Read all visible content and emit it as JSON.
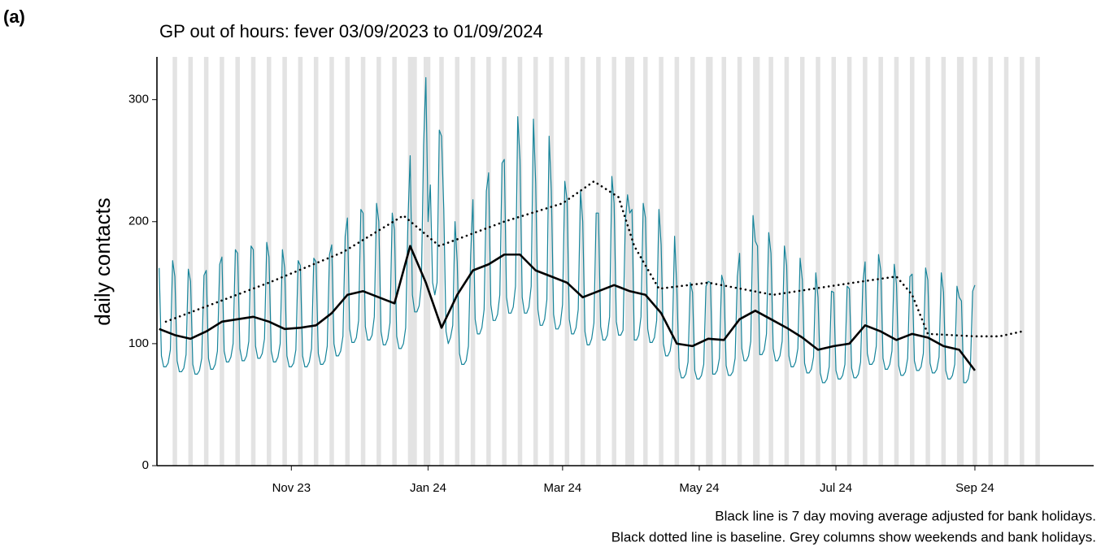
{
  "panel_label": "(a)",
  "chart_data": {
    "type": "line",
    "title": "GP out of hours: fever 03/09/2023 to 01/09/2024",
    "y_label": "daily contacts",
    "caption": [
      "Black line is 7 day moving average adjusted for bank holidays.",
      "Black dotted line is baseline. Grey columns show weekends and bank holidays."
    ],
    "xlim": [
      -1,
      417
    ],
    "xticks": [
      {
        "value": 59,
        "label": "Nov 23"
      },
      {
        "value": 120,
        "label": "Jan 24"
      },
      {
        "value": 180,
        "label": "Mar 24"
      },
      {
        "value": 241,
        "label": "May 24"
      },
      {
        "value": 302,
        "label": "Jul 24"
      },
      {
        "value": 364,
        "label": "Sep 24"
      }
    ],
    "ylim": [
      0,
      335
    ],
    "yticks": [
      0,
      100,
      200,
      300
    ],
    "shading_color": "#e3e3e3",
    "shaded": [
      [
        6,
        8
      ],
      [
        13,
        15
      ],
      [
        20,
        22
      ],
      [
        27,
        29
      ],
      [
        34,
        36
      ],
      [
        41,
        43
      ],
      [
        48,
        50
      ],
      [
        55,
        57
      ],
      [
        62,
        64
      ],
      [
        69,
        71
      ],
      [
        76,
        78
      ],
      [
        83,
        85
      ],
      [
        90,
        92
      ],
      [
        97,
        99
      ],
      [
        104,
        106
      ],
      [
        111,
        115
      ],
      [
        118,
        121
      ],
      [
        125,
        127
      ],
      [
        132,
        134
      ],
      [
        139,
        141
      ],
      [
        146,
        148
      ],
      [
        153,
        155
      ],
      [
        160,
        162
      ],
      [
        167,
        169
      ],
      [
        174,
        176
      ],
      [
        181,
        183
      ],
      [
        188,
        190
      ],
      [
        195,
        197
      ],
      [
        202,
        204
      ],
      [
        208,
        212
      ],
      [
        216,
        218
      ],
      [
        223,
        225
      ],
      [
        230,
        232
      ],
      [
        237,
        239
      ],
      [
        244,
        247
      ],
      [
        251,
        253
      ],
      [
        258,
        260
      ],
      [
        265,
        268
      ],
      [
        272,
        274
      ],
      [
        279,
        281
      ],
      [
        286,
        288
      ],
      [
        293,
        295
      ],
      [
        300,
        302
      ],
      [
        307,
        309
      ],
      [
        314,
        316
      ],
      [
        321,
        323
      ],
      [
        328,
        330
      ],
      [
        335,
        337
      ],
      [
        342,
        344
      ],
      [
        349,
        351
      ],
      [
        356,
        359
      ],
      [
        363,
        365
      ],
      [
        370,
        372
      ],
      [
        377,
        379
      ],
      [
        384,
        386
      ],
      [
        391,
        393
      ]
    ],
    "series": [
      {
        "color": "#16849a",
        "line_style": "solid",
        "x": [
          0,
          1,
          2,
          3,
          4,
          5,
          6,
          7,
          8,
          9,
          10,
          11,
          12,
          13,
          14,
          15,
          16,
          17,
          18,
          19,
          20,
          21,
          22,
          23,
          24,
          25,
          26,
          27,
          28,
          29,
          30,
          31,
          32,
          33,
          34,
          35,
          36,
          37,
          38,
          39,
          40,
          41,
          42,
          43,
          44,
          45,
          46,
          47,
          48,
          49,
          50,
          51,
          52,
          53,
          54,
          55,
          56,
          57,
          58,
          59,
          60,
          61,
          62,
          63,
          64,
          65,
          66,
          67,
          68,
          69,
          70,
          71,
          72,
          73,
          74,
          75,
          76,
          77,
          78,
          79,
          80,
          81,
          82,
          83,
          84,
          85,
          86,
          87,
          88,
          89,
          90,
          91,
          92,
          93,
          94,
          95,
          96,
          97,
          98,
          99,
          100,
          101,
          102,
          103,
          104,
          105,
          106,
          107,
          108,
          109,
          110,
          111,
          112,
          113,
          114,
          115,
          116,
          117,
          118,
          119,
          120,
          121,
          122,
          123,
          124,
          125,
          126,
          127,
          128,
          129,
          130,
          131,
          132,
          133,
          134,
          135,
          136,
          137,
          138,
          139,
          140,
          141,
          142,
          143,
          144,
          145,
          146,
          147,
          148,
          149,
          150,
          151,
          152,
          153,
          154,
          155,
          156,
          157,
          158,
          159,
          160,
          161,
          162,
          163,
          164,
          165,
          166,
          167,
          168,
          169,
          170,
          171,
          172,
          173,
          174,
          175,
          176,
          177,
          178,
          179,
          180,
          181,
          182,
          183,
          184,
          185,
          186,
          187,
          188,
          189,
          190,
          191,
          192,
          193,
          194,
          195,
          196,
          197,
          198,
          199,
          200,
          201,
          202,
          203,
          204,
          205,
          206,
          207,
          208,
          209,
          210,
          211,
          212,
          213,
          214,
          215,
          216,
          217,
          218,
          219,
          220,
          221,
          222,
          223,
          224,
          225,
          226,
          227,
          228,
          229,
          230,
          231,
          232,
          233,
          234,
          235,
          236,
          237,
          238,
          239,
          240,
          241,
          242,
          243,
          244,
          245,
          246,
          247,
          248,
          249,
          250,
          251,
          252,
          253,
          254,
          255,
          256,
          257,
          258,
          259,
          260,
          261,
          262,
          263,
          264,
          265,
          266,
          267,
          268,
          269,
          270,
          271,
          272,
          273,
          274,
          275,
          276,
          277,
          278,
          279,
          280,
          281,
          282,
          283,
          284,
          285,
          286,
          287,
          288,
          289,
          290,
          291,
          292,
          293,
          294,
          295,
          296,
          297,
          298,
          299,
          300,
          301,
          302,
          303,
          304,
          305,
          306,
          307,
          308,
          309,
          310,
          311,
          312,
          313,
          314,
          315,
          316,
          317,
          318,
          319,
          320,
          321,
          322,
          323,
          324,
          325,
          326,
          327,
          328,
          329,
          330,
          331,
          332,
          333,
          334,
          335,
          336,
          337,
          338,
          339,
          340,
          341,
          342,
          343,
          344,
          345,
          346,
          347,
          348,
          349,
          350,
          351,
          352,
          353,
          354,
          355,
          356,
          357,
          358,
          359,
          360,
          361,
          362,
          363,
          364
        ],
        "values": [
          162,
          90,
          81,
          81,
          84,
          95,
          168,
          155,
          86,
          77,
          77,
          80,
          91,
          161,
          151,
          83,
          75,
          75,
          78,
          88,
          156,
          160,
          88,
          79,
          79,
          83,
          94,
          165,
          171,
          94,
          85,
          85,
          89,
          100,
          177,
          174,
          96,
          86,
          86,
          90,
          102,
          180,
          177,
          98,
          88,
          88,
          92,
          104,
          183,
          171,
          94,
          85,
          85,
          89,
          100,
          177,
          162,
          90,
          81,
          81,
          84,
          95,
          168,
          164,
          90,
          81,
          81,
          85,
          96,
          170,
          167,
          92,
          83,
          83,
          86,
          98,
          173,
          181,
          100,
          90,
          90,
          94,
          106,
          188,
          203,
          112,
          101,
          101,
          105,
          119,
          210,
          207,
          114,
          103,
          103,
          107,
          122,
          215,
          200,
          110,
          99,
          99,
          104,
          117,
          207,
          193,
          106,
          96,
          96,
          100,
          113,
          200,
          254,
          140,
          126,
          126,
          131,
          149,
          263,
          318,
          200,
          230,
          150,
          140,
          150,
          275,
          270,
          210,
          110,
          100,
          105,
          115,
          200,
          167,
          92,
          83,
          83,
          86,
          98,
          173,
          218,
          120,
          108,
          108,
          113,
          128,
          225,
          240,
          132,
          119,
          119,
          124,
          140,
          248,
          251,
          138,
          125,
          125,
          130,
          147,
          286,
          251,
          138,
          125,
          125,
          130,
          147,
          284,
          232,
          128,
          115,
          115,
          120,
          136,
          270,
          225,
          124,
          112,
          112,
          116,
          132,
          233,
          218,
          120,
          108,
          108,
          113,
          128,
          225,
          200,
          110,
          99,
          99,
          104,
          117,
          207,
          207,
          114,
          103,
          103,
          107,
          122,
          237,
          215,
          118,
          107,
          107,
          111,
          200,
          222,
          207,
          210,
          103,
          103,
          107,
          122,
          215,
          203,
          112,
          101,
          101,
          105,
          119,
          210,
          181,
          100,
          90,
          90,
          94,
          106,
          188,
          145,
          80,
          72,
          72,
          75,
          85,
          150,
          142,
          78,
          71,
          71,
          74,
          83,
          147,
          151,
          150,
          75,
          75,
          78,
          88,
          156,
          149,
          82,
          74,
          74,
          77,
          88,
          155,
          174,
          96,
          86,
          86,
          90,
          102,
          205,
          184,
          180,
          91,
          91,
          95,
          108,
          191,
          174,
          96,
          86,
          86,
          90,
          102,
          180,
          164,
          90,
          81,
          81,
          85,
          96,
          170,
          152,
          84,
          76,
          76,
          79,
          89,
          158,
          138,
          76,
          68,
          68,
          71,
          81,
          143,
          142,
          78,
          71,
          71,
          74,
          83,
          147,
          145,
          80,
          72,
          72,
          75,
          85,
          150,
          167,
          92,
          83,
          83,
          86,
          98,
          173,
          160,
          88,
          79,
          79,
          83,
          94,
          165,
          149,
          82,
          74,
          74,
          77,
          88,
          155,
          157,
          86,
          78,
          78,
          81,
          92,
          162,
          152,
          84,
          76,
          76,
          79,
          89,
          158,
          142,
          78,
          71,
          71,
          74,
          83,
          147,
          138,
          135,
          68,
          68,
          71,
          81,
          143,
          148
        ]
      },
      {
        "color": "#000000",
        "line_style": "solid",
        "x": [
          0,
          7,
          14,
          21,
          28,
          35,
          42,
          49,
          56,
          63,
          70,
          77,
          84,
          91,
          98,
          105,
          112,
          119,
          126,
          133,
          140,
          147,
          154,
          161,
          168,
          175,
          182,
          189,
          196,
          203,
          210,
          217,
          224,
          231,
          238,
          245,
          252,
          259,
          266,
          273,
          280,
          287,
          294,
          301,
          308,
          315,
          322,
          329,
          336,
          343,
          350,
          357,
          364
        ],
        "values": [
          112,
          107,
          104,
          110,
          118,
          120,
          122,
          118,
          112,
          113,
          115,
          125,
          140,
          143,
          138,
          133,
          180,
          150,
          113,
          140,
          160,
          165,
          173,
          173,
          160,
          155,
          150,
          138,
          143,
          148,
          143,
          140,
          125,
          100,
          98,
          104,
          103,
          120,
          127,
          120,
          113,
          105,
          95,
          98,
          100,
          115,
          110,
          103,
          108,
          105,
          98,
          95,
          78
        ]
      },
      {
        "color": "#000000",
        "line_style": "dotted",
        "x": [
          3,
          49,
          82,
          109,
          125,
          154,
          180,
          194,
          205,
          212,
          223,
          245,
          274,
          310,
          329,
          336,
          343,
          364,
          375,
          385
        ],
        "values": [
          118,
          150,
          175,
          205,
          180,
          200,
          215,
          233,
          220,
          180,
          145,
          150,
          140,
          150,
          155,
          140,
          108,
          106,
          106,
          110
        ]
      }
    ]
  }
}
